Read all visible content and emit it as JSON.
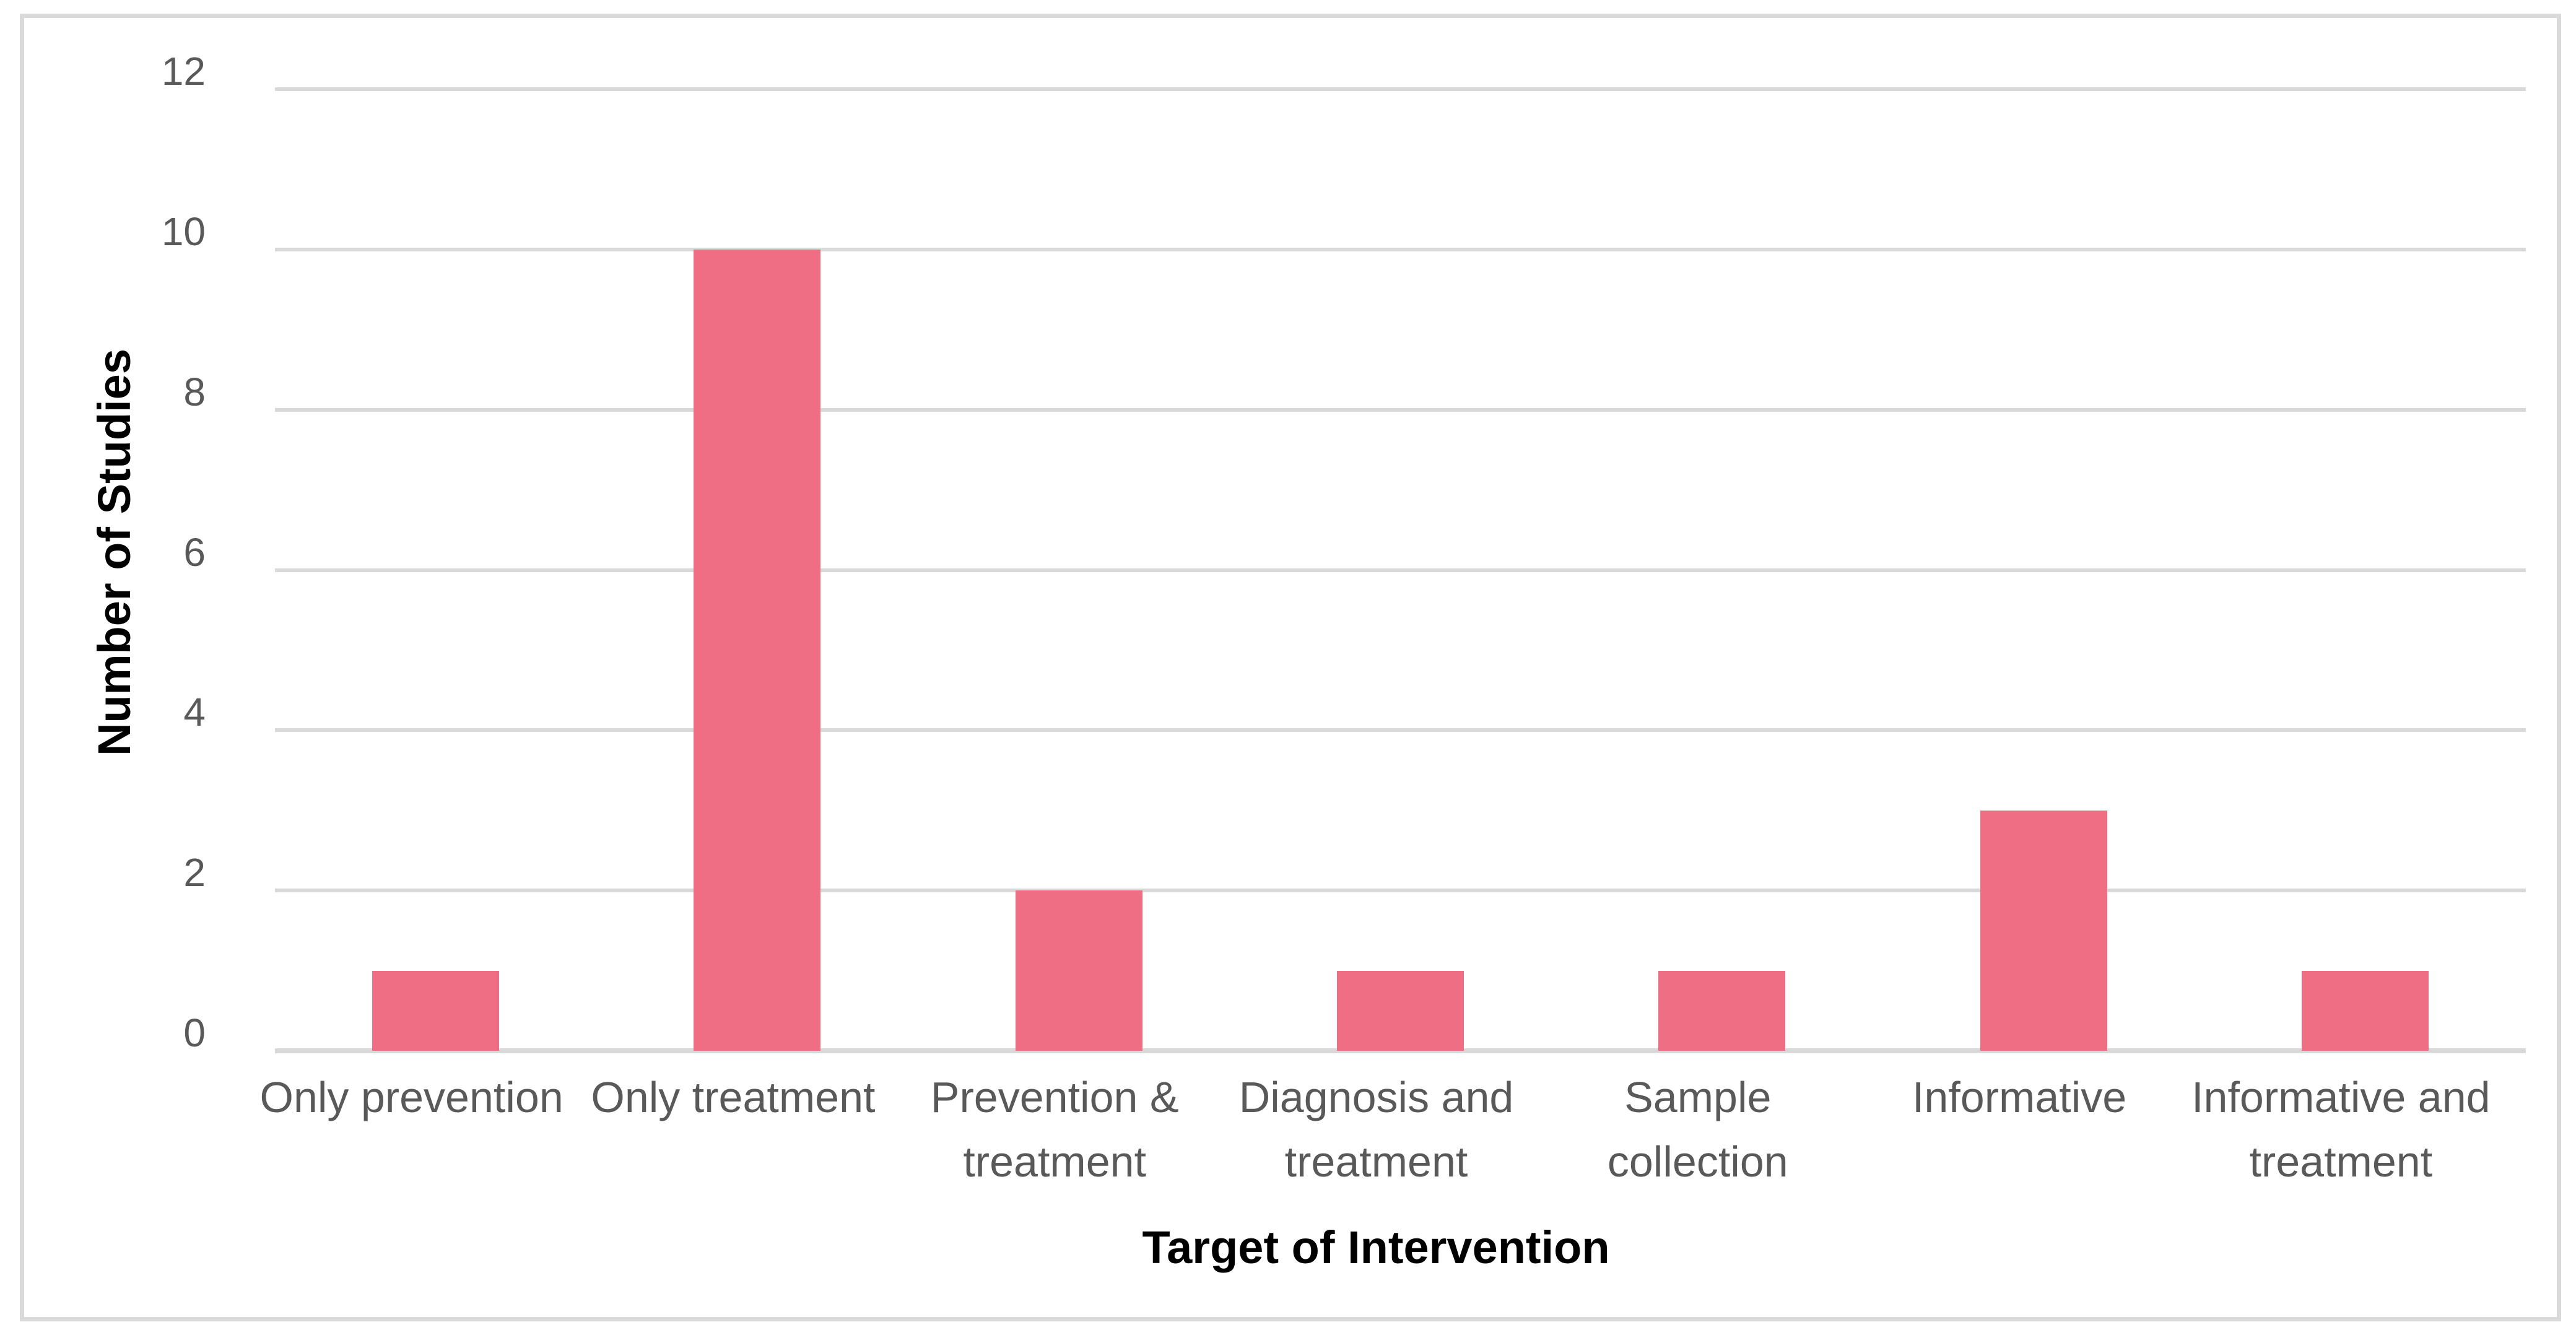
{
  "chart_data": {
    "type": "bar",
    "title": "",
    "xlabel": "Target of Intervention",
    "ylabel": "Number of Studies",
    "categories": [
      "Only prevention",
      "Only treatment",
      "Prevention & treatment",
      "Diagnosis and treatment",
      "Sample collection",
      "Informative",
      "Informative and treatment"
    ],
    "category_label_lines": [
      [
        "Only prevention"
      ],
      [
        "Only treatment"
      ],
      [
        "Prevention &",
        "treatment"
      ],
      [
        "Diagnosis and",
        "treatment"
      ],
      [
        "Sample",
        "collection"
      ],
      [
        "Informative"
      ],
      [
        "Informative and",
        "treatment"
      ]
    ],
    "values": [
      1,
      10,
      2,
      1,
      1,
      3,
      1
    ],
    "ylim": [
      0,
      12
    ],
    "yticks": [
      0,
      2,
      4,
      6,
      8,
      10,
      12
    ],
    "grid": "horizontal",
    "legend": "none",
    "colors": {
      "bar": "#EF6E83",
      "gridline": "#D9D9D9",
      "axis_line": "#D9D9D9",
      "frame_border": "#D9D9D9",
      "tick_label": "#595959",
      "axis_title": "#000000",
      "background": "#FFFFFF"
    }
  }
}
